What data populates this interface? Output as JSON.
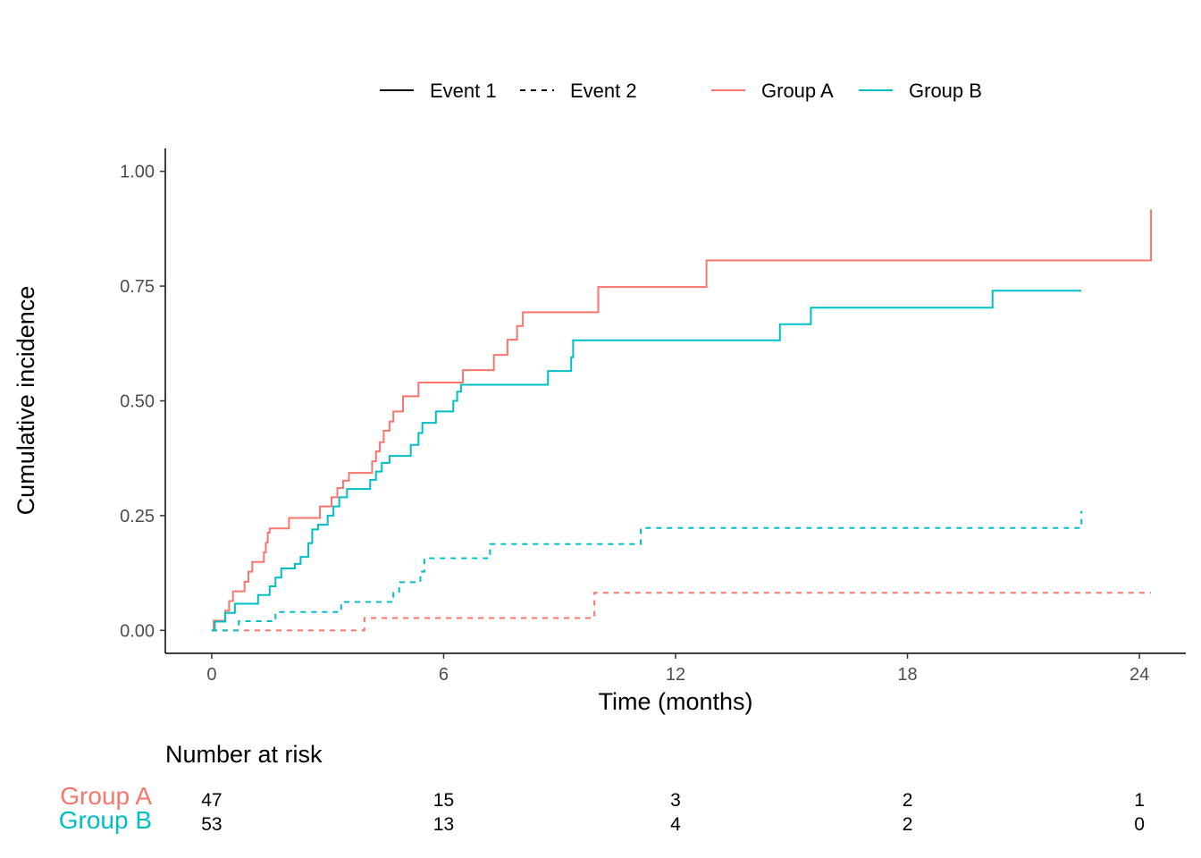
{
  "legend": {
    "events": [
      {
        "label": "Event 1",
        "linetype": "solid"
      },
      {
        "label": "Event 2",
        "linetype": "dashed"
      }
    ],
    "groups": [
      {
        "label": "Group A",
        "color": "#F8766D"
      },
      {
        "label": "Group B",
        "color": "#00BFC4"
      }
    ]
  },
  "chart_data": {
    "type": "line",
    "step": true,
    "xlabel": "Time (months)",
    "ylabel": "Cumulative incidence",
    "xlim": [
      -1.2,
      25.2
    ],
    "ylim": [
      -0.05,
      1.05
    ],
    "x_ticks": [
      0,
      6,
      12,
      18,
      24
    ],
    "y_ticks": [
      0.0,
      0.25,
      0.5,
      0.75,
      1.0
    ],
    "y_tick_labels": [
      "0.00",
      "0.25",
      "0.50",
      "0.75",
      "1.00"
    ],
    "grid": false,
    "legend_position": "top",
    "series": [
      {
        "name": "Group A",
        "event": "Event 1",
        "color": "#F8766D",
        "linetype": "solid",
        "points": [
          [
            0.0,
            0.0
          ],
          [
            0.05,
            0.021
          ],
          [
            0.35,
            0.043
          ],
          [
            0.45,
            0.064
          ],
          [
            0.55,
            0.085
          ],
          [
            0.85,
            0.106
          ],
          [
            0.95,
            0.128
          ],
          [
            1.05,
            0.149
          ],
          [
            1.35,
            0.17
          ],
          [
            1.4,
            0.191
          ],
          [
            1.45,
            0.213
          ],
          [
            1.5,
            0.222
          ],
          [
            2.0,
            0.245
          ],
          [
            2.8,
            0.27
          ],
          [
            3.1,
            0.29
          ],
          [
            3.25,
            0.31
          ],
          [
            3.4,
            0.326
          ],
          [
            3.55,
            0.343
          ],
          [
            4.15,
            0.368
          ],
          [
            4.25,
            0.39
          ],
          [
            4.35,
            0.41
          ],
          [
            4.45,
            0.435
          ],
          [
            4.6,
            0.455
          ],
          [
            4.7,
            0.477
          ],
          [
            4.95,
            0.51
          ],
          [
            5.35,
            0.54
          ],
          [
            6.5,
            0.567
          ],
          [
            7.3,
            0.6
          ],
          [
            7.65,
            0.633
          ],
          [
            7.9,
            0.663
          ],
          [
            8.05,
            0.693
          ],
          [
            10.0,
            0.748
          ],
          [
            12.8,
            0.806
          ],
          [
            24.3,
            0.917
          ]
        ]
      },
      {
        "name": "Group B",
        "event": "Event 1",
        "color": "#00BFC4",
        "linetype": "solid",
        "points": [
          [
            0.0,
            0.0
          ],
          [
            0.08,
            0.019
          ],
          [
            0.35,
            0.038
          ],
          [
            0.6,
            0.058
          ],
          [
            1.1,
            0.058
          ],
          [
            1.2,
            0.077
          ],
          [
            1.5,
            0.096
          ],
          [
            1.65,
            0.115
          ],
          [
            1.8,
            0.135
          ],
          [
            2.15,
            0.145
          ],
          [
            2.3,
            0.16
          ],
          [
            2.5,
            0.19
          ],
          [
            2.6,
            0.22
          ],
          [
            2.75,
            0.23
          ],
          [
            2.95,
            0.23
          ],
          [
            3.0,
            0.25
          ],
          [
            3.15,
            0.27
          ],
          [
            3.3,
            0.29
          ],
          [
            3.5,
            0.308
          ],
          [
            4.1,
            0.328
          ],
          [
            4.25,
            0.346
          ],
          [
            4.4,
            0.365
          ],
          [
            4.6,
            0.38
          ],
          [
            5.15,
            0.404
          ],
          [
            5.35,
            0.43
          ],
          [
            5.45,
            0.452
          ],
          [
            5.8,
            0.477
          ],
          [
            6.25,
            0.5
          ],
          [
            6.35,
            0.52
          ],
          [
            6.45,
            0.535
          ],
          [
            8.7,
            0.565
          ],
          [
            9.3,
            0.595
          ],
          [
            9.35,
            0.632
          ],
          [
            14.7,
            0.667
          ],
          [
            15.5,
            0.703
          ],
          [
            20.2,
            0.74
          ],
          [
            22.5,
            0.74
          ]
        ]
      },
      {
        "name": "Group A",
        "event": "Event 2",
        "color": "#F8766D",
        "linetype": "dashed",
        "points": [
          [
            0.0,
            0.0
          ],
          [
            0.8,
            0.0
          ],
          [
            3.95,
            0.027
          ],
          [
            9.9,
            0.082
          ],
          [
            24.3,
            0.082
          ]
        ]
      },
      {
        "name": "Group B",
        "event": "Event 2",
        "color": "#00BFC4",
        "linetype": "dashed",
        "points": [
          [
            0.0,
            0.0
          ],
          [
            0.15,
            0.0
          ],
          [
            0.7,
            0.02
          ],
          [
            1.65,
            0.04
          ],
          [
            3.35,
            0.062
          ],
          [
            4.7,
            0.082
          ],
          [
            4.85,
            0.105
          ],
          [
            5.4,
            0.128
          ],
          [
            5.5,
            0.157
          ],
          [
            7.2,
            0.188
          ],
          [
            11.1,
            0.223
          ],
          [
            22.5,
            0.26
          ]
        ]
      }
    ],
    "risk_table": {
      "title": "Number at risk",
      "times": [
        0,
        6,
        12,
        18,
        24
      ],
      "rows": [
        {
          "group": "Group A",
          "color": "#F8766D",
          "values": [
            47,
            15,
            3,
            2,
            1
          ]
        },
        {
          "group": "Group B",
          "color": "#00BFC4",
          "values": [
            53,
            13,
            4,
            2,
            0
          ]
        }
      ]
    }
  }
}
